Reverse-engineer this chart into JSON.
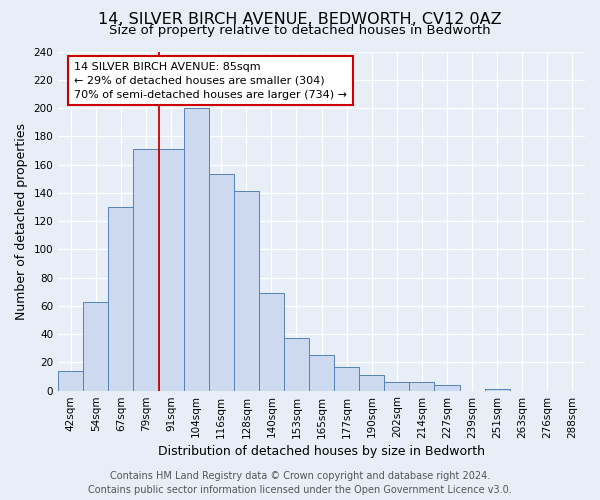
{
  "title": "14, SILVER BIRCH AVENUE, BEDWORTH, CV12 0AZ",
  "subtitle": "Size of property relative to detached houses in Bedworth",
  "xlabel": "Distribution of detached houses by size in Bedworth",
  "ylabel": "Number of detached properties",
  "bar_labels": [
    "42sqm",
    "54sqm",
    "67sqm",
    "79sqm",
    "91sqm",
    "104sqm",
    "116sqm",
    "128sqm",
    "140sqm",
    "153sqm",
    "165sqm",
    "177sqm",
    "190sqm",
    "202sqm",
    "214sqm",
    "227sqm",
    "239sqm",
    "251sqm",
    "263sqm",
    "276sqm",
    "288sqm"
  ],
  "bar_heights": [
    14,
    63,
    130,
    171,
    171,
    200,
    153,
    141,
    69,
    37,
    25,
    17,
    11,
    6,
    6,
    4,
    0,
    1,
    0,
    0,
    0
  ],
  "bar_color": "#ccd9ee",
  "bar_edgecolor": "#5580b8",
  "ylim": [
    0,
    240
  ],
  "yticks": [
    0,
    20,
    40,
    60,
    80,
    100,
    120,
    140,
    160,
    180,
    200,
    220,
    240
  ],
  "vline_color": "#cc0000",
  "vline_pos": 3.5,
  "annotation_line1": "14 SILVER BIRCH AVENUE: 85sqm",
  "annotation_line2": "← 29% of detached houses are smaller (304)",
  "annotation_line3": "70% of semi-detached houses are larger (734) →",
  "annotation_box_edgecolor": "#cc0000",
  "footer_line1": "Contains HM Land Registry data © Crown copyright and database right 2024.",
  "footer_line2": "Contains public sector information licensed under the Open Government Licence v3.0.",
  "fig_background_color": "#e8eef7",
  "plot_background_color": "#e8eef7",
  "grid_color": "#ffffff",
  "title_fontsize": 11.5,
  "subtitle_fontsize": 9.5,
  "tick_fontsize": 7.5,
  "ylabel_fontsize": 9,
  "xlabel_fontsize": 9,
  "annotation_fontsize": 8,
  "footer_fontsize": 7
}
